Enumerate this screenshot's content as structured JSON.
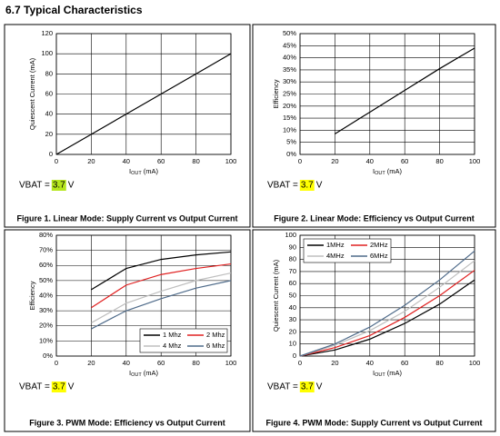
{
  "header": {
    "title": "6.7 Typical Characteristics"
  },
  "chart_data": [
    {
      "type": "line",
      "title": "Figure 1. Linear Mode: Supply Current vs Output Current",
      "y_label": "Quiescent Current (mA)",
      "x_label": {
        "main": "I",
        "sub": "OUT",
        "unit": "(mA)"
      },
      "x": [
        0,
        20,
        40,
        60,
        80,
        100
      ],
      "series": [
        {
          "color": "#000000",
          "values": [
            0,
            20,
            40,
            60,
            80,
            100
          ]
        }
      ],
      "xlim": [
        0,
        100
      ],
      "xticks": [
        0,
        20,
        40,
        60,
        80,
        100
      ],
      "ylim": [
        0,
        120
      ],
      "yticks": [
        0,
        20,
        40,
        60,
        80,
        100,
        120
      ],
      "grid": true,
      "annotation": {
        "label": "VBAT =",
        "value": "3.7",
        "unit": "V",
        "highlight": "#b5e61d"
      }
    },
    {
      "type": "line",
      "title": "Figure 2. Linear Mode: Efficiency vs Output Current",
      "y_label": "Efficiency",
      "x_label": {
        "main": "I",
        "sub": "OUT",
        "unit": "(mA)"
      },
      "x": [
        20,
        40,
        60,
        80,
        100
      ],
      "series": [
        {
          "color": "#000000",
          "values": [
            8.5,
            17.5,
            26.5,
            35.5,
            44
          ]
        }
      ],
      "xlim": [
        0,
        100
      ],
      "xticks": [
        0,
        20,
        40,
        60,
        80,
        100
      ],
      "ylim": [
        0,
        50
      ],
      "yticks": [
        {
          "value": 0,
          "label": "0%"
        },
        {
          "value": 5,
          "label": "5%"
        },
        {
          "value": 10,
          "label": "10%"
        },
        {
          "value": 15,
          "label": "15%"
        },
        {
          "value": 20,
          "label": "20%"
        },
        {
          "value": 25,
          "label": "25%"
        },
        {
          "value": 30,
          "label": "30%"
        },
        {
          "value": 35,
          "label": "35%"
        },
        {
          "value": 40,
          "label": "40%"
        },
        {
          "value": 45,
          "label": "45%"
        },
        {
          "value": 50,
          "label": "50%"
        }
      ],
      "grid": true,
      "annotation": {
        "label": "VBAT =",
        "value": "3.7",
        "unit": "V",
        "highlight": "#ffff00"
      }
    },
    {
      "type": "line",
      "title": "Figure 3. PWM Mode: Efficiency vs Output Current",
      "y_label": "Efficiency",
      "x_label": {
        "main": "I",
        "sub": "OUT",
        "unit": "(mA)"
      },
      "x": [
        20,
        40,
        60,
        80,
        100
      ],
      "series": [
        {
          "name": "1 Mhz",
          "color": "#000000",
          "values": [
            44,
            58,
            64,
            67,
            69
          ]
        },
        {
          "name": "2 Mhz",
          "color": "#e02020",
          "values": [
            32,
            47,
            54,
            58,
            61
          ]
        },
        {
          "name": "4 Mhz",
          "color": "#bfbfbf",
          "values": [
            22,
            35,
            43,
            50,
            55
          ]
        },
        {
          "name": "6 Mhz",
          "color": "#4f6b8a",
          "values": [
            18,
            30,
            38,
            45,
            50
          ]
        }
      ],
      "xlim": [
        0,
        100
      ],
      "xticks": [
        0,
        20,
        40,
        60,
        80,
        100
      ],
      "ylim": [
        0,
        80
      ],
      "yticks": [
        {
          "value": 0,
          "label": "0%"
        },
        {
          "value": 10,
          "label": "10%"
        },
        {
          "value": 20,
          "label": "20%"
        },
        {
          "value": 30,
          "label": "30%"
        },
        {
          "value": 40,
          "label": "40%"
        },
        {
          "value": 50,
          "label": "50%"
        },
        {
          "value": 60,
          "label": "60%"
        },
        {
          "value": 70,
          "label": "70%"
        },
        {
          "value": 80,
          "label": "80%"
        }
      ],
      "grid": true,
      "legend": "lower right",
      "annotation": {
        "label": "VBAT =",
        "value": "3.7",
        "unit": "V",
        "highlight": "#ffff00"
      }
    },
    {
      "type": "line",
      "title": "Figure 4. PWM Mode: Supply Current vs Output Current",
      "y_label": "Quiescent Current (mA)",
      "x_label": {
        "main": "I",
        "sub": "OUT",
        "unit": "(mA)"
      },
      "x": [
        0,
        20,
        40,
        60,
        80,
        100
      ],
      "series": [
        {
          "name": "1MHz",
          "color": "#000000",
          "values": [
            0,
            5,
            14,
            27,
            43,
            63
          ]
        },
        {
          "name": "2MHz",
          "color": "#e02020",
          "values": [
            0,
            7,
            17,
            32,
            50,
            71
          ]
        },
        {
          "name": "4MHz",
          "color": "#bfbfbf",
          "values": [
            0,
            9,
            21,
            37,
            57,
            79
          ]
        },
        {
          "name": "6MHz",
          "color": "#4f6b8a",
          "values": [
            0,
            10,
            24,
            42,
            63,
            87
          ]
        }
      ],
      "xlim": [
        0,
        100
      ],
      "xticks": [
        0,
        20,
        40,
        60,
        80,
        100
      ],
      "ylim": [
        0,
        100
      ],
      "yticks": [
        0,
        10,
        20,
        30,
        40,
        50,
        60,
        70,
        80,
        90,
        100
      ],
      "grid": true,
      "legend": "upper left",
      "annotation": {
        "label": "VBAT =",
        "value": "3.7",
        "unit": "V",
        "highlight": "#ffff00"
      }
    }
  ]
}
